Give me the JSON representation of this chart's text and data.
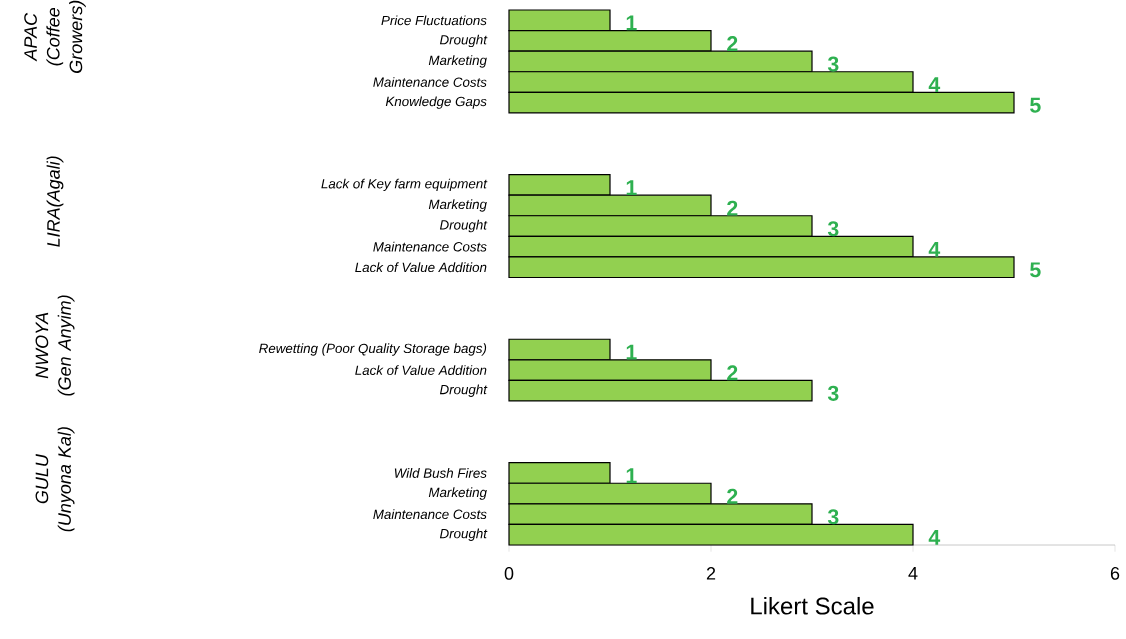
{
  "chart_data": {
    "type": "bar",
    "orientation": "horizontal",
    "xlabel": "Likert Scale",
    "categories": [
      "Price Fluctuations",
      "Drought",
      "Marketing",
      "Maintenance Costs",
      "Knowledge Gaps",
      null,
      null,
      null,
      "Lack of Key farm equipment",
      "Marketing",
      "Drought",
      "Maintenance Costs",
      "Lack of Value Addition",
      null,
      null,
      null,
      "Rewetting (Poor Quality Storage bags)",
      "Lack of Value Addition",
      "Drought",
      null,
      null,
      null,
      "Wild Bush Fires",
      "Marketing",
      "Maintenance Costs",
      "Drought"
    ],
    "values": [
      1,
      2,
      3,
      4,
      5,
      null,
      null,
      null,
      1,
      2,
      3,
      4,
      5,
      null,
      null,
      null,
      1,
      2,
      3,
      null,
      null,
      null,
      1,
      2,
      3,
      4
    ],
    "color": "#92d050",
    "data_labels": true,
    "xlim": [
      0,
      6
    ],
    "xticks": [
      0,
      2,
      4,
      6
    ],
    "annotations": [
      "APAC (Coffee Growers)",
      "LIRA(Agali)",
      "NWOYA (Gen Anyim)",
      "GULU (Unyona Kal)"
    ]
  }
}
